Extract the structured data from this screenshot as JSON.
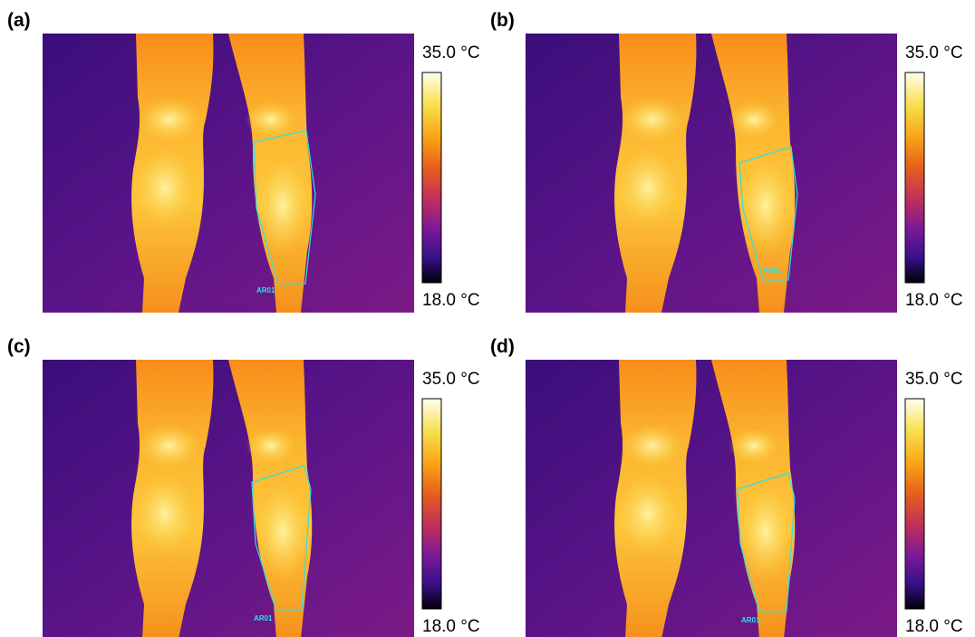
{
  "panels": [
    {
      "label": "(a)",
      "scale_max": "35.0 °C",
      "scale_min": "18.0 °C",
      "roi_label": "AR01"
    },
    {
      "label": "(b)",
      "scale_max": "35.0 °C",
      "scale_min": "18.0 °C",
      "roi_label": "AR01"
    },
    {
      "label": "(c)",
      "scale_max": "35.0 °C",
      "scale_min": "18.0 °C",
      "roi_label": "AR01"
    },
    {
      "label": "(d)",
      "scale_max": "35.0 °C",
      "scale_min": "18.0 °C",
      "roi_label": "AR01"
    }
  ]
}
